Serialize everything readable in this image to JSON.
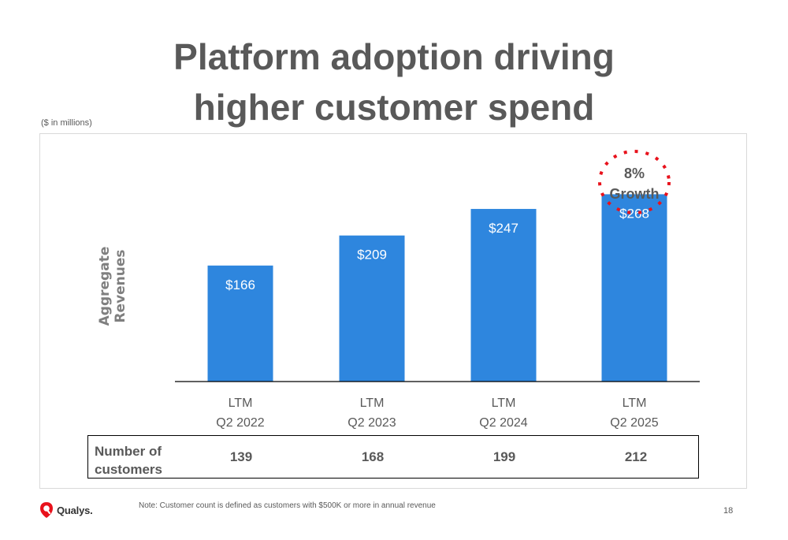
{
  "slide": {
    "title_line1": "Platform adoption driving",
    "title_line2": "higher customer spend",
    "units": "($ in millions)",
    "note": "Note: Customer count is defined as customers with $500K or more in annual revenue",
    "page_number": "18",
    "logo_text": "Qualys."
  },
  "chart_data": {
    "type": "bar",
    "ylabel": "Aggregate Revenues",
    "xlabel": "",
    "categories": [
      [
        "LTM",
        "Q2 2022"
      ],
      [
        "LTM",
        "Q2 2023"
      ],
      [
        "LTM",
        "Q2 2024"
      ],
      [
        "LTM",
        "Q2 2025"
      ]
    ],
    "values": [
      166,
      209,
      247,
      268
    ],
    "data_labels": [
      "$166",
      "$209",
      "$247",
      "$268"
    ],
    "ylim": [
      0,
      370
    ],
    "grid": false,
    "bar_color": "#2e86de",
    "annotation": {
      "line1": "8%",
      "line2": "Growth",
      "target_category_index": 3,
      "ring_color": "#e8121c"
    }
  },
  "customers": {
    "label": "Number of customers",
    "values": [
      "139",
      "168",
      "199",
      "212"
    ]
  },
  "colors": {
    "text": "#595959",
    "axis": "#000000",
    "logo_red": "#e8121c"
  }
}
